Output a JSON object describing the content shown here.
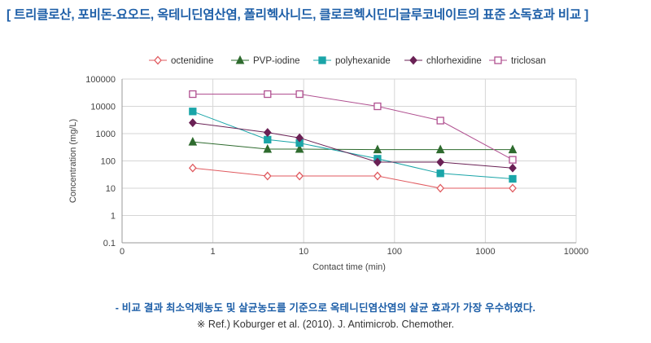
{
  "header": {
    "title": "[ 트리클로산, 포비돈-요오드, 옥테니딘염산염, 폴리헥사니드, 클로르헥시딘디글루코네이트의 표준 소독효과 비교 ]"
  },
  "colors": {
    "title": "#1e5fa8",
    "octenidine": "#e05a5f",
    "pvp_iodine": "#2e6b2e",
    "polyhexanide": "#1aa5a8",
    "chlorhexidine": "#6a2155",
    "triclosan": "#b05090"
  },
  "chart_data": {
    "type": "line",
    "title": "",
    "xlabel": "Contact time (min)",
    "ylabel": "Concentration (mg/L)",
    "x_scale": "log",
    "y_scale": "log",
    "x_ticks": [
      "0",
      "1",
      "10",
      "100",
      "1000",
      "10000"
    ],
    "y_ticks": [
      "0.1",
      "1",
      "10",
      "100",
      "1000",
      "10000",
      "100000"
    ],
    "xlim": [
      0.1,
      10000
    ],
    "ylim": [
      0.1,
      100000
    ],
    "legend_position": "top",
    "series": [
      {
        "name": "octenidine",
        "marker": "diamond-open",
        "color": "#e05a5f",
        "x": [
          0.6,
          4,
          9,
          65,
          320,
          2000
        ],
        "y": [
          55,
          28,
          28,
          28,
          10,
          10
        ]
      },
      {
        "name": "PVP-iodine",
        "marker": "triangle",
        "color": "#2e6b2e",
        "x": [
          0.6,
          4,
          9,
          65,
          320,
          2000
        ],
        "y": [
          500,
          270,
          270,
          260,
          260,
          260
        ]
      },
      {
        "name": "polyhexanide",
        "marker": "square",
        "color": "#1aa5a8",
        "x": [
          0.6,
          4,
          9,
          65,
          320,
          2000
        ],
        "y": [
          6500,
          600,
          450,
          120,
          35,
          22
        ]
      },
      {
        "name": "chlorhexidine",
        "marker": "diamond",
        "color": "#6a2155",
        "x": [
          0.6,
          4,
          9,
          65,
          320,
          2000
        ],
        "y": [
          2500,
          1100,
          700,
          90,
          90,
          55
        ]
      },
      {
        "name": "triclosan",
        "marker": "square-open",
        "color": "#b05090",
        "x": [
          0.6,
          4,
          9,
          65,
          320,
          2000
        ],
        "y": [
          28000,
          28000,
          28000,
          10000,
          3000,
          110
        ]
      }
    ]
  },
  "footer": {
    "note": "- 비교 결과 최소억제농도 및 살균농도를 기준으로 옥테니딘염산염의 살균 효과가 가장 우수하였다.",
    "reference": "※ Ref.) Koburger et al. (2010). J. Antimicrob. Chemother."
  }
}
